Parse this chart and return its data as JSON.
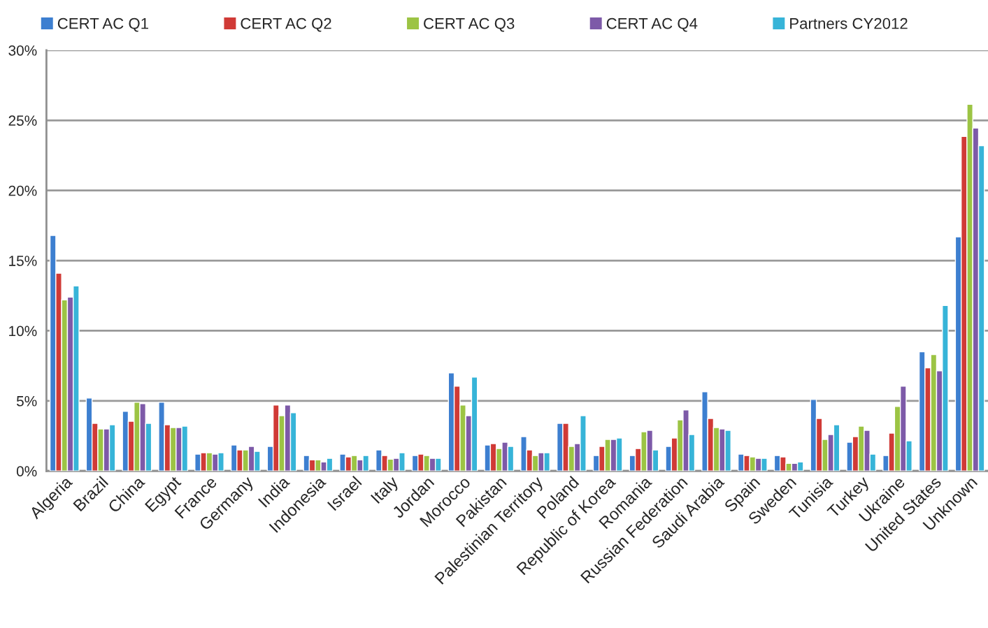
{
  "chart_data": {
    "type": "bar",
    "categories": [
      "Algeria",
      "Brazil",
      "China",
      "Egypt",
      "France",
      "Germany",
      "India",
      "Indonesia",
      "Israel",
      "Italy",
      "Jordan",
      "Morocco",
      "Pakistan",
      "Palestinian Territory",
      "Poland",
      "Republic of Korea",
      "Romania",
      "Russian Federation",
      "Saudi Arabia",
      "Spain",
      "Sweden",
      "Tunisia",
      "Turkey",
      "Ukraine",
      "United States",
      "Unknown"
    ],
    "series": [
      {
        "name": "CERT AC Q1",
        "color": "#3d7fd0",
        "values": [
          16.8,
          5.2,
          4.25,
          4.9,
          1.2,
          1.85,
          1.75,
          1.1,
          1.2,
          1.5,
          1.1,
          7.0,
          1.85,
          2.45,
          3.4,
          1.1,
          1.1,
          1.75,
          5.65,
          1.2,
          1.1,
          5.1,
          2.05,
          1.1,
          8.5,
          16.7
        ]
      },
      {
        "name": "CERT AC Q2",
        "color": "#d03a36",
        "values": [
          14.1,
          3.4,
          3.55,
          3.3,
          1.3,
          1.5,
          4.7,
          0.8,
          1.0,
          1.1,
          1.2,
          6.05,
          1.95,
          1.5,
          3.4,
          1.75,
          1.6,
          2.35,
          3.75,
          1.1,
          1.0,
          3.75,
          2.45,
          2.7,
          7.35,
          23.85
        ]
      },
      {
        "name": "CERT AC Q3",
        "color": "#9cc444",
        "values": [
          12.2,
          3.0,
          4.9,
          3.1,
          1.3,
          1.5,
          3.95,
          0.8,
          1.1,
          0.85,
          1.1,
          4.7,
          1.6,
          1.1,
          1.75,
          2.25,
          2.8,
          3.65,
          3.1,
          1.0,
          0.55,
          2.25,
          3.2,
          4.6,
          8.3,
          26.15
        ]
      },
      {
        "name": "CERT AC Q4",
        "color": "#7d5aa8",
        "values": [
          12.4,
          3.0,
          4.8,
          3.1,
          1.2,
          1.75,
          4.7,
          0.65,
          0.8,
          0.9,
          0.9,
          3.95,
          2.05,
          1.3,
          1.95,
          2.25,
          2.9,
          4.35,
          3.0,
          0.9,
          0.55,
          2.6,
          2.9,
          6.05,
          7.15,
          24.45
        ]
      },
      {
        "name": "Partners CY2012",
        "color": "#37b4d8",
        "values": [
          13.2,
          3.3,
          3.4,
          3.2,
          1.3,
          1.4,
          4.15,
          0.9,
          1.1,
          1.3,
          0.9,
          6.7,
          1.75,
          1.3,
          3.95,
          2.35,
          1.5,
          2.6,
          2.9,
          0.9,
          0.65,
          3.3,
          1.2,
          2.15,
          11.8,
          23.2
        ]
      }
    ],
    "ylim": [
      0,
      30
    ],
    "yticks": [
      {
        "value": 0,
        "label": "0%"
      },
      {
        "value": 5,
        "label": "5%"
      },
      {
        "value": 10,
        "label": "10%"
      },
      {
        "value": 15,
        "label": "15%"
      },
      {
        "value": 20,
        "label": "20%"
      },
      {
        "value": 25,
        "label": "25%"
      },
      {
        "value": 30,
        "label": "30%"
      }
    ],
    "grid": "y",
    "legend": "top"
  }
}
